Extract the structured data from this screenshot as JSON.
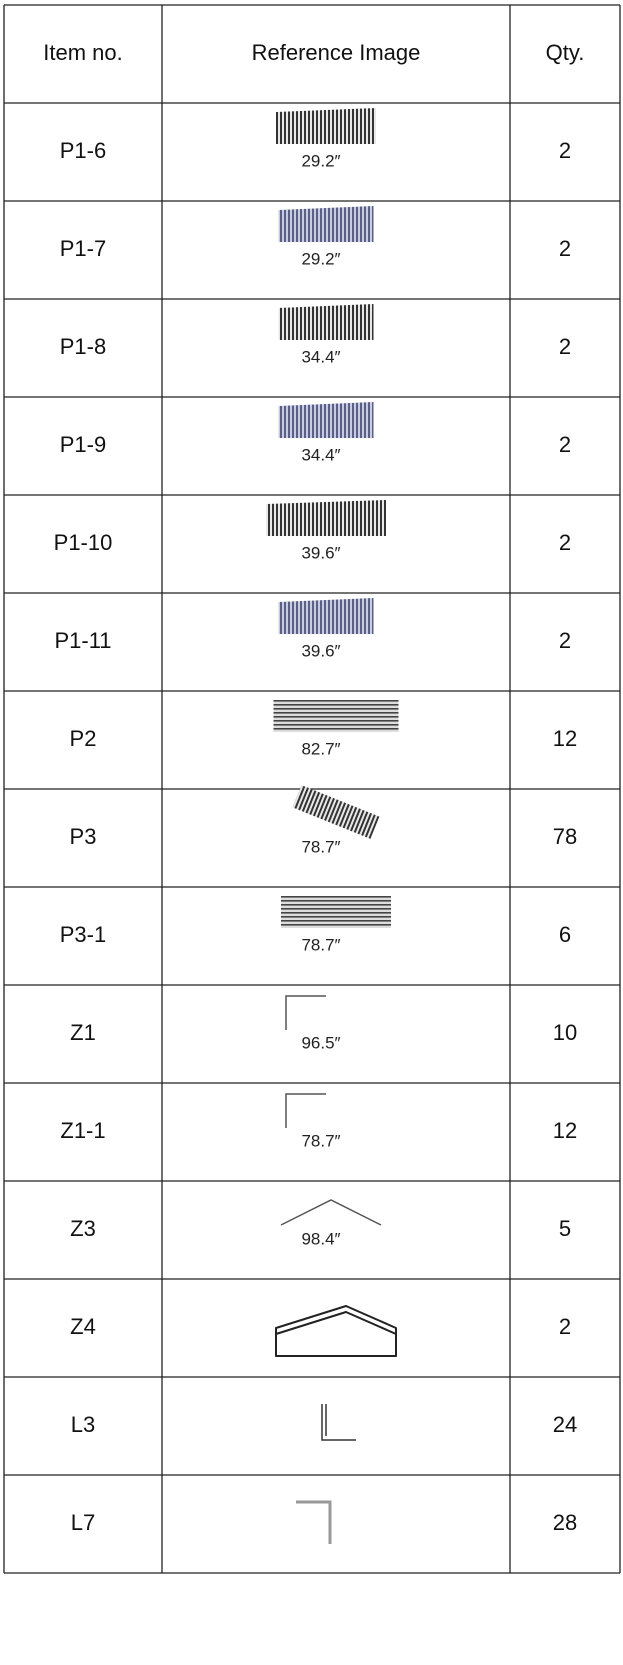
{
  "table": {
    "header": [
      "Item no.",
      "Reference Image",
      "Qty."
    ],
    "rows": [
      [
        "P1-6",
        "29.2″",
        2
      ],
      [
        "P1-7",
        "29.2″",
        2
      ],
      [
        "P1-8",
        "34.4″",
        2
      ],
      [
        "P1-9",
        "34.4″",
        2
      ],
      [
        "P1-10",
        "39.6″",
        2
      ],
      [
        "P1-11",
        "39.6″",
        2
      ],
      [
        "P2",
        "82.7″",
        12
      ],
      [
        "P3",
        "78.7″",
        78
      ],
      [
        "P3-1",
        "78.7″",
        6
      ],
      [
        "Z1",
        "96.5″",
        10
      ],
      [
        "Z1-1",
        "78.7″",
        12
      ],
      [
        "Z3",
        "98.4″",
        5
      ],
      [
        "Z4",
        null,
        2
      ],
      [
        "L3",
        null,
        24
      ],
      [
        "L7",
        null,
        28
      ]
    ]
  }
}
